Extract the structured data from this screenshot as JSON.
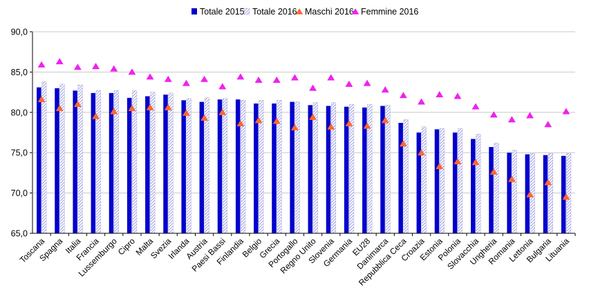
{
  "chart_data": {
    "type": "bar",
    "legend_position": "top",
    "grid": true,
    "ylim": [
      65,
      90
    ],
    "yticks": [
      "65,0",
      "70,0",
      "75,0",
      "80,0",
      "85,0",
      "90,0"
    ],
    "ytick_values": [
      65,
      70,
      75,
      80,
      85,
      90
    ],
    "categories": [
      "Toscana",
      "Spagna",
      "Italia",
      "Francia",
      "Lussemburgo",
      "Cipro",
      "Malta",
      "Svezia",
      "Irlanda",
      "Austria",
      "Paesi Bassi",
      "Finlandia",
      "Belgio",
      "Grecia",
      "Portogallo",
      "Regno Unito",
      "Slovenia",
      "Germania",
      "EU28",
      "Danimarca",
      "Repubblica Ceca",
      "Croazia",
      "Estonia",
      "Polonia",
      "Slovacchia",
      "Ungheria",
      "Romania",
      "Lettonia",
      "Bulgaria",
      "Lituania"
    ],
    "series": [
      {
        "name": "Totale 2015",
        "kind": "bar",
        "style": "solid",
        "color": "#0000cc",
        "values": [
          83.1,
          83.0,
          82.7,
          82.4,
          82.4,
          81.8,
          82.0,
          82.2,
          81.5,
          81.3,
          81.6,
          81.6,
          81.1,
          81.1,
          81.3,
          80.9,
          80.8,
          80.7,
          80.6,
          80.8,
          78.7,
          77.5,
          77.9,
          77.5,
          76.7,
          75.7,
          75.0,
          74.8,
          74.7,
          74.6
        ]
      },
      {
        "name": "Totale 2016",
        "kind": "bar",
        "style": "hatched",
        "color": "#9999dd",
        "values": [
          83.8,
          83.5,
          83.4,
          82.7,
          82.7,
          82.7,
          82.5,
          82.4,
          81.7,
          81.8,
          81.7,
          81.5,
          81.5,
          81.5,
          81.3,
          81.2,
          81.2,
          81.0,
          81.0,
          80.9,
          79.1,
          78.2,
          78.0,
          78.0,
          77.3,
          76.2,
          75.3,
          74.9,
          74.9,
          74.9
        ]
      },
      {
        "name": "Maschi 2016",
        "kind": "marker",
        "color": "#ff6633",
        "values": [
          81.6,
          80.5,
          81.0,
          79.5,
          80.1,
          80.5,
          80.6,
          80.6,
          79.9,
          79.3,
          80.0,
          78.6,
          79.0,
          78.9,
          78.1,
          79.4,
          78.2,
          78.6,
          78.3,
          79.0,
          76.1,
          75.0,
          73.3,
          73.9,
          73.8,
          72.6,
          71.7,
          69.8,
          71.3,
          69.5
        ]
      },
      {
        "name": "Femmine 2016",
        "kind": "marker",
        "color": "#ee22ee",
        "values": [
          85.9,
          86.3,
          85.6,
          85.7,
          85.4,
          85.0,
          84.4,
          84.1,
          83.6,
          84.1,
          83.2,
          84.4,
          84.0,
          84.0,
          84.3,
          83.0,
          84.3,
          83.5,
          83.6,
          82.8,
          82.1,
          81.3,
          82.2,
          82.0,
          80.7,
          79.7,
          79.1,
          79.6,
          78.5,
          80.1
        ]
      }
    ]
  }
}
